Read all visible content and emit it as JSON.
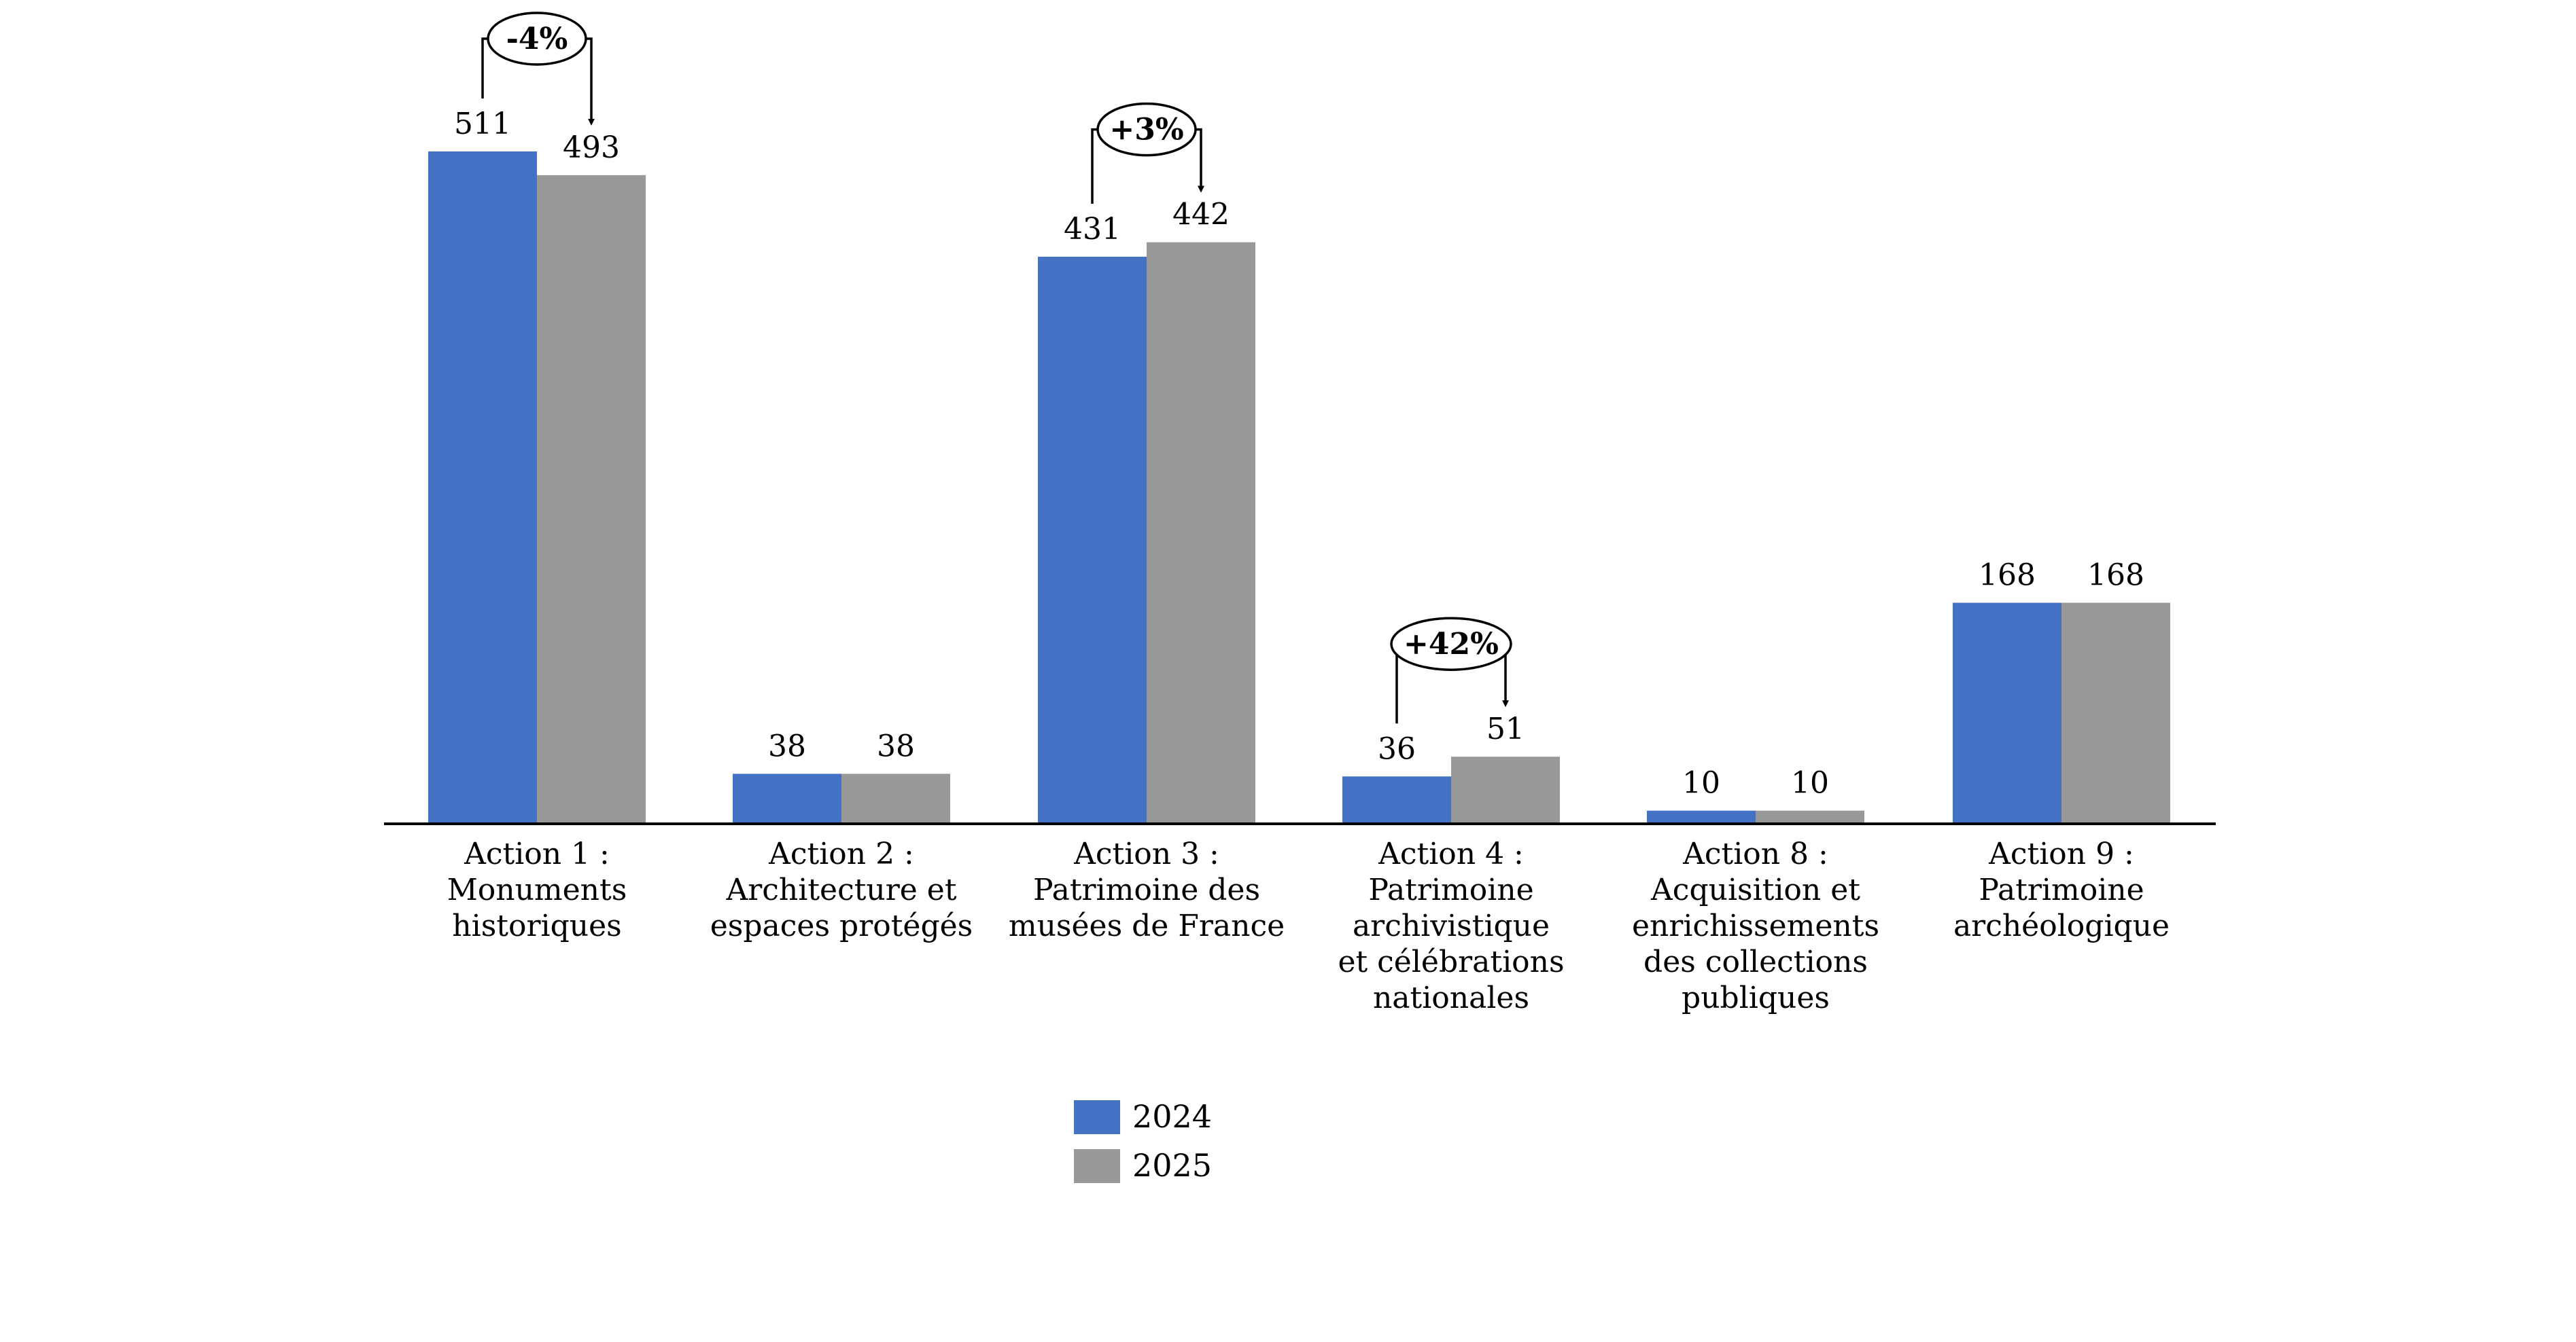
{
  "chart_data": {
    "type": "bar",
    "categories": [
      [
        "Action 1 :",
        "Monuments",
        "historiques"
      ],
      [
        "Action 2 :",
        "Architecture et",
        "espaces protégés"
      ],
      [
        "Action 3 :",
        "Patrimoine des",
        "musées de France"
      ],
      [
        "Action 4 :",
        "Patrimoine",
        "archivistique",
        "et célébrations",
        "nationales"
      ],
      [
        "Action 8 :",
        "Acquisition et",
        "enrichissements",
        "des collections",
        "publiques"
      ],
      [
        "Action 9 :",
        "Patrimoine",
        "archéologique"
      ]
    ],
    "series": [
      {
        "name": "2024",
        "color": "#4472C4",
        "values": [
          511,
          38,
          431,
          36,
          10,
          168
        ]
      },
      {
        "name": "2025",
        "color": "#999999",
        "values": [
          493,
          38,
          442,
          51,
          10,
          168
        ]
      }
    ],
    "ylim": [
      0,
      540
    ],
    "grid": false,
    "legend_position": "bottom-center",
    "annotations": [
      {
        "category_index": 0,
        "label": "-4%"
      },
      {
        "category_index": 2,
        "label": "+3%"
      },
      {
        "category_index": 3,
        "label": "+42%"
      }
    ]
  }
}
